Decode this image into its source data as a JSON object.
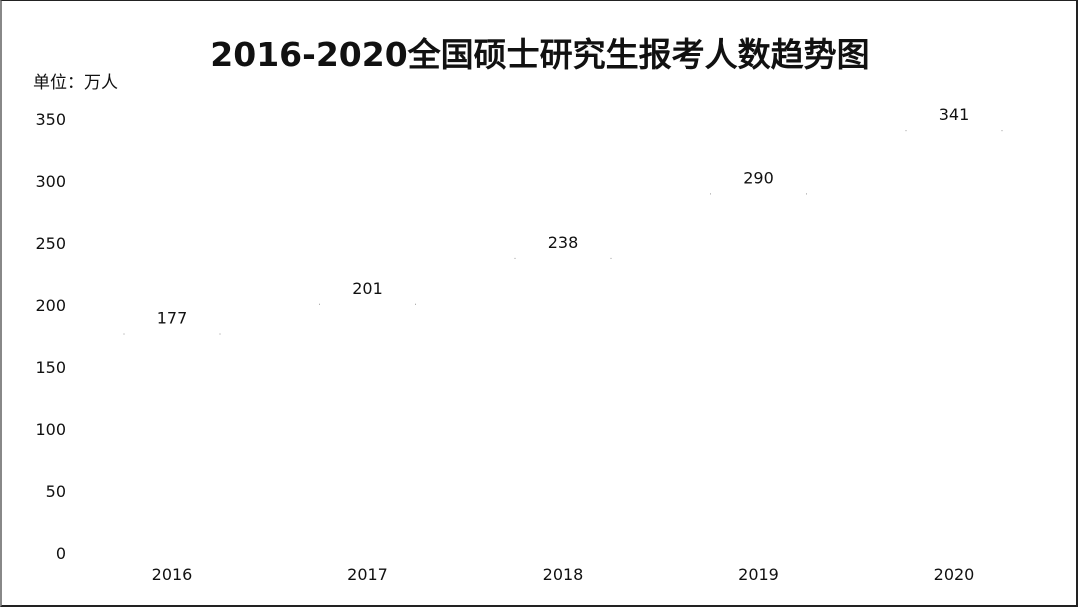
{
  "chart_data": {
    "type": "bar",
    "title": "2016-2020全国硕士研究生报考人数趋势图",
    "unit_label": "单位：万人",
    "categories": [
      "2016",
      "2017",
      "2018",
      "2019",
      "2020"
    ],
    "values": [
      177,
      201,
      238,
      290,
      341
    ],
    "value_labels": [
      "177",
      "201",
      "238",
      "290",
      "341"
    ],
    "y_ticks": [
      "0",
      "50",
      "100",
      "150",
      "200",
      "250",
      "300",
      "350"
    ],
    "ylim": [
      0,
      350
    ],
    "grid": false,
    "legend": "none",
    "bar_color": "#ffffff",
    "text_color": "#111111"
  }
}
